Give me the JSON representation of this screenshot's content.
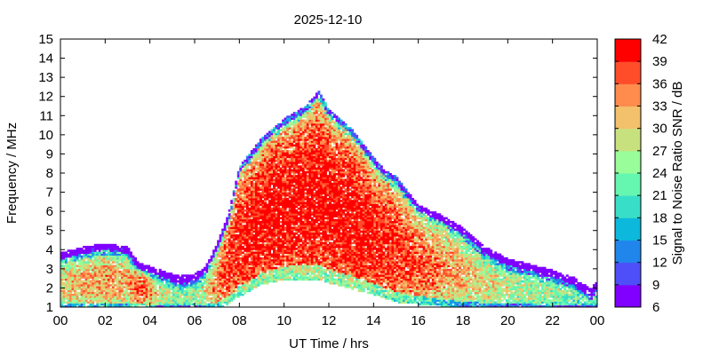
{
  "chart_data": {
    "type": "heatmap",
    "title": "2025-12-10",
    "xlabel": "UT Time / hrs",
    "ylabel": "Frequency / MHz",
    "colorbar_label": "Signal to Noise Ratio SNR / dB",
    "xlim": [
      0,
      24
    ],
    "ylim": [
      1,
      15
    ],
    "x_ticks": [
      "00",
      "02",
      "04",
      "06",
      "08",
      "10",
      "12",
      "14",
      "16",
      "18",
      "20",
      "22",
      "00"
    ],
    "y_ticks": [
      "1",
      "2",
      "3",
      "4",
      "5",
      "6",
      "7",
      "8",
      "9",
      "10",
      "11",
      "12",
      "13",
      "14",
      "15"
    ],
    "colorbar": {
      "range": [
        6,
        42
      ],
      "ticks": [
        "6",
        "9",
        "12",
        "15",
        "18",
        "21",
        "24",
        "27",
        "30",
        "33",
        "36",
        "39",
        "42"
      ],
      "colors": [
        "#8000ff",
        "#4f4ff9",
        "#2086ec",
        "#0cb8dc",
        "#39dec8",
        "#65f6b0",
        "#99fd99",
        "#c8e17f",
        "#f3c06b",
        "#ff8b4d",
        "#ff4d2a",
        "#ff0000"
      ]
    },
    "envelope": {
      "time_hrs": [
        0,
        1,
        2,
        3,
        3.5,
        4,
        4.5,
        5,
        5.5,
        6,
        6.5,
        7,
        7.5,
        8,
        9,
        10,
        11,
        11.5,
        12,
        13,
        14,
        14.5,
        15,
        16,
        17,
        18,
        19,
        20,
        21,
        22,
        23,
        23.7,
        24
      ],
      "max_freq_mhz": [
        3.5,
        3.8,
        4.0,
        3.8,
        3.0,
        2.8,
        2.6,
        2.4,
        2.3,
        2.4,
        2.8,
        4.0,
        5.5,
        8.0,
        9.5,
        10.5,
        11.2,
        12.0,
        11.0,
        10.0,
        8.5,
        7.8,
        7.5,
        6.0,
        5.5,
        4.8,
        3.8,
        3.2,
        2.9,
        2.6,
        2.2,
        1.6,
        2.0
      ],
      "min_freq_mhz": [
        1.0,
        1.0,
        1.0,
        1.0,
        1.0,
        1.0,
        1.0,
        1.0,
        1.0,
        1.0,
        1.0,
        1.0,
        1.2,
        1.6,
        2.2,
        2.5,
        2.5,
        2.5,
        2.3,
        2.0,
        1.7,
        1.5,
        1.3,
        1.2,
        1.1,
        1.0,
        1.0,
        1.0,
        1.0,
        1.0,
        1.0,
        1.0,
        1.0
      ],
      "peak_snr_db": [
        31,
        33,
        34,
        32,
        38,
        34,
        28,
        26,
        25,
        26,
        30,
        36,
        39,
        41,
        42,
        42,
        42,
        42,
        42,
        42,
        41,
        40,
        40,
        37,
        35,
        32,
        30,
        28,
        27,
        26,
        24,
        22,
        24
      ]
    }
  }
}
